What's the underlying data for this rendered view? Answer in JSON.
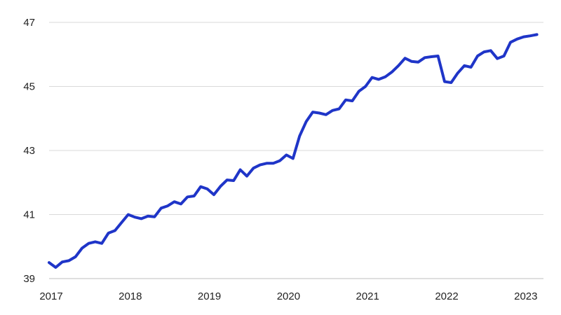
{
  "chart_data": {
    "type": "line",
    "title": "",
    "xlabel": "",
    "ylabel": "",
    "x_tick_labels": [
      "2017",
      "2018",
      "2019",
      "2020",
      "2021",
      "2022",
      "2023"
    ],
    "y_tick_labels": [
      "39",
      "41",
      "43",
      "45",
      "47"
    ],
    "y_ticks": [
      39,
      41,
      43,
      45,
      47
    ],
    "ylim": [
      39,
      47
    ],
    "xlim": [
      2017.0,
      2023.25
    ],
    "grid": "horizontal",
    "series": [
      {
        "color": "#1f35c8",
        "x": [
          2017.0,
          2017.083,
          2017.167,
          2017.25,
          2017.333,
          2017.417,
          2017.5,
          2017.583,
          2017.667,
          2017.75,
          2017.833,
          2017.917,
          2018.0,
          2018.083,
          2018.167,
          2018.25,
          2018.333,
          2018.417,
          2018.5,
          2018.583,
          2018.667,
          2018.75,
          2018.833,
          2018.917,
          2019.0,
          2019.083,
          2019.167,
          2019.25,
          2019.333,
          2019.417,
          2019.5,
          2019.583,
          2019.667,
          2019.75,
          2019.833,
          2019.917,
          2020.0,
          2020.083,
          2020.167,
          2020.25,
          2020.333,
          2020.417,
          2020.5,
          2020.583,
          2020.667,
          2020.75,
          2020.833,
          2020.917,
          2021.0,
          2021.083,
          2021.167,
          2021.25,
          2021.333,
          2021.417,
          2021.5,
          2021.583,
          2021.667,
          2021.75,
          2021.833,
          2021.917,
          2022.0,
          2022.083,
          2022.167,
          2022.25,
          2022.333,
          2022.417,
          2022.5,
          2022.583,
          2022.667,
          2022.75,
          2022.833,
          2022.917,
          2023.0,
          2023.083,
          2023.167
        ],
        "values": [
          39.5,
          39.35,
          39.52,
          39.56,
          39.68,
          39.95,
          40.1,
          40.15,
          40.1,
          40.42,
          40.5,
          40.75,
          41.0,
          40.92,
          40.87,
          40.95,
          40.93,
          41.2,
          41.27,
          41.4,
          41.33,
          41.55,
          41.58,
          41.87,
          41.8,
          41.62,
          41.88,
          42.08,
          42.06,
          42.4,
          42.2,
          42.45,
          42.55,
          42.6,
          42.6,
          42.68,
          42.86,
          42.75,
          43.45,
          43.9,
          44.2,
          44.17,
          44.12,
          44.25,
          44.3,
          44.58,
          44.55,
          44.85,
          45.0,
          45.28,
          45.22,
          45.3,
          45.45,
          45.65,
          45.88,
          45.78,
          45.76,
          45.9,
          45.93,
          45.95,
          45.15,
          45.12,
          45.42,
          45.65,
          45.6,
          45.95,
          46.08,
          46.12,
          45.87,
          45.95,
          46.38,
          46.48,
          46.55,
          46.58,
          46.62
        ]
      }
    ]
  }
}
